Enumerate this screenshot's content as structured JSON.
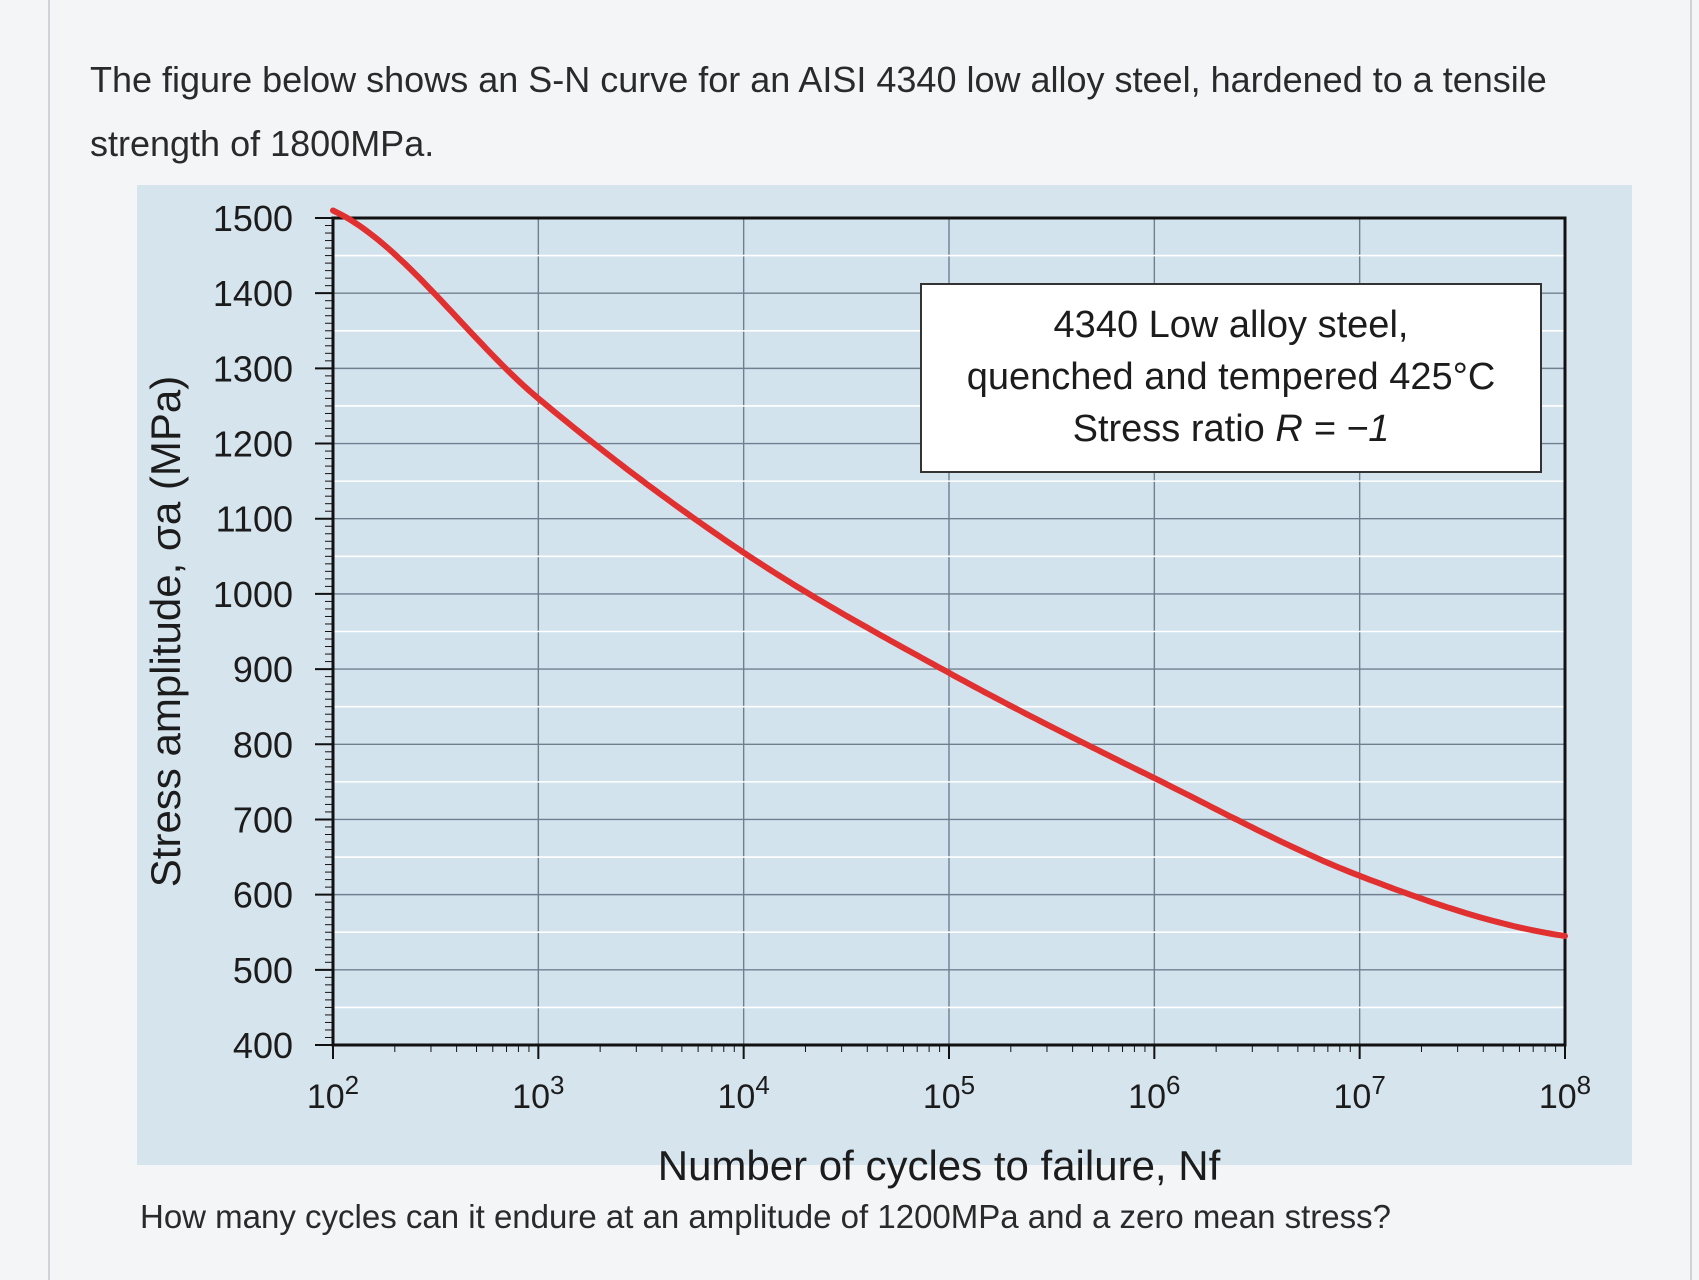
{
  "question": {
    "line1": "The figure below shows an S-N curve for an AISI 4340 low alloy steel, hardened to a tensile",
    "line2": "strength of 1800MPa."
  },
  "follow_up": "How many cycles can it endure at an amplitude of 1200MPa and a zero mean stress?",
  "chart_data": {
    "type": "line",
    "title": "",
    "xlabel": "Number of cycles to failure, Nf",
    "ylabel": "Stress amplitude, σa (MPa)",
    "x_scale": "log",
    "xlim": [
      100,
      100000000
    ],
    "ylim": [
      400,
      1500
    ],
    "x_ticks": [
      100,
      1000,
      10000,
      100000,
      1000000,
      10000000,
      100000000
    ],
    "x_tick_labels": [
      {
        "base": "10",
        "exp": "2"
      },
      {
        "base": "10",
        "exp": "3"
      },
      {
        "base": "10",
        "exp": "4"
      },
      {
        "base": "10",
        "exp": "5"
      },
      {
        "base": "10",
        "exp": "6"
      },
      {
        "base": "10",
        "exp": "7"
      },
      {
        "base": "10",
        "exp": "8"
      }
    ],
    "y_ticks": [
      400,
      500,
      600,
      700,
      800,
      900,
      1000,
      1100,
      1200,
      1300,
      1400,
      1500
    ],
    "grid": true,
    "curve_color": "#e03030",
    "series": [
      {
        "x": [
          100,
          1000,
          10000,
          100000,
          1000000,
          10000000,
          100000000
        ],
        "y": [
          1510,
          1260,
          1055,
          895,
          755,
          625,
          545
        ]
      }
    ],
    "annotation": {
      "line1": "4340 Low alloy steel,",
      "line2": "quenched and tempered 425°C",
      "line3_text": "Stress ratio ",
      "line3_math": "R = −1"
    }
  }
}
